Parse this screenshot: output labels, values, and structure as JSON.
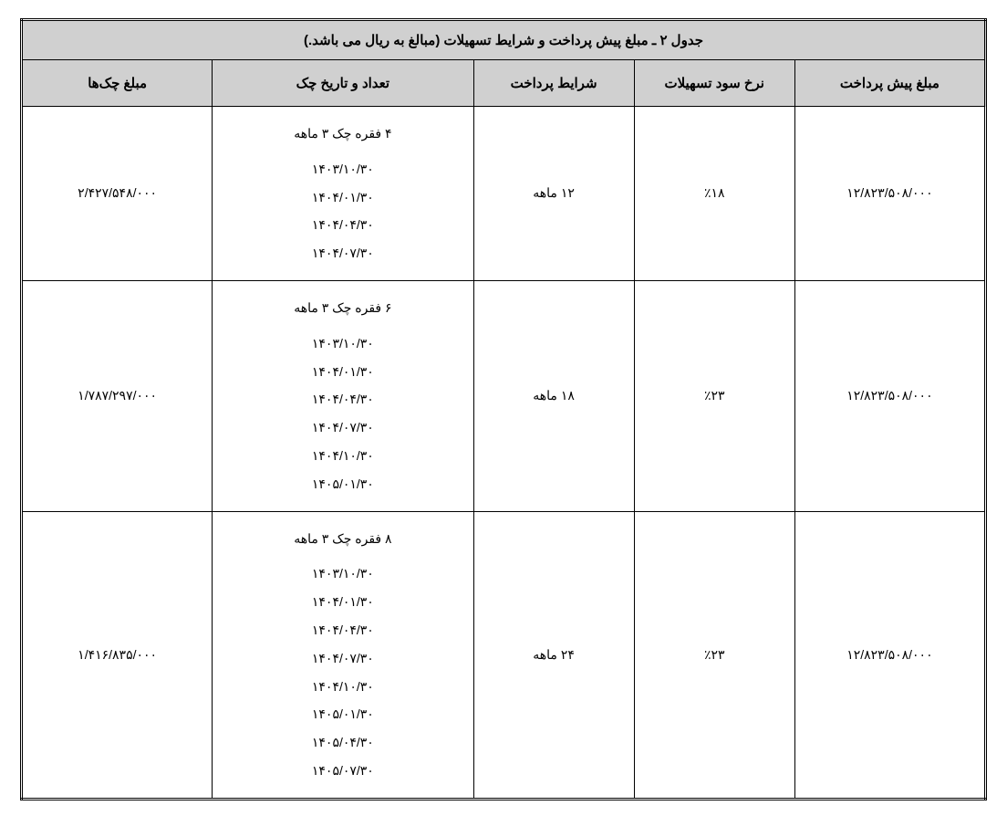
{
  "table": {
    "title": "جدول ۲ ـ مبلغ پیش پرداخت و شرایط تسهیلات (مبالغ به ریال می باشد.)",
    "columns": [
      "مبلغ پیش پرداخت",
      "نرخ سود تسهیلات",
      "شرایط پرداخت",
      "تعداد و تاریخ چک",
      "مبلغ چک‌ها"
    ],
    "rows": [
      {
        "prepayment": "۱۲/۸۲۳/۵۰۸/۰۰۰",
        "rate": "٪۱۸",
        "terms": "۱۲ ماهه",
        "check_header": "۴ فقره چک ۳ ماهه",
        "dates": [
          "۱۴۰۳/۱۰/۳۰",
          "۱۴۰۴/۰۱/۳۰",
          "۱۴۰۴/۰۴/۳۰",
          "۱۴۰۴/۰۷/۳۰"
        ],
        "check_amount": "۲/۴۲۷/۵۴۸/۰۰۰"
      },
      {
        "prepayment": "۱۲/۸۲۳/۵۰۸/۰۰۰",
        "rate": "٪۲۳",
        "terms": "۱۸ ماهه",
        "check_header": "۶ فقره چک ۳ ماهه",
        "dates": [
          "۱۴۰۳/۱۰/۳۰",
          "۱۴۰۴/۰۱/۳۰",
          "۱۴۰۴/۰۴/۳۰",
          "۱۴۰۴/۰۷/۳۰",
          "۱۴۰۴/۱۰/۳۰",
          "۱۴۰۵/۰۱/۳۰"
        ],
        "check_amount": "۱/۷۸۷/۲۹۷/۰۰۰"
      },
      {
        "prepayment": "۱۲/۸۲۳/۵۰۸/۰۰۰",
        "rate": "٪۲۳",
        "terms": "۲۴ ماهه",
        "check_header": "۸ فقره چک ۳ ماهه",
        "dates": [
          "۱۴۰۳/۱۰/۳۰",
          "۱۴۰۴/۰۱/۳۰",
          "۱۴۰۴/۰۴/۳۰",
          "۱۴۰۴/۰۷/۳۰",
          "۱۴۰۴/۱۰/۳۰",
          "۱۴۰۵/۰۱/۳۰",
          "۱۴۰۵/۰۴/۳۰",
          "۱۴۰۵/۰۷/۳۰"
        ],
        "check_amount": "۱/۴۱۶/۸۳۵/۰۰۰"
      }
    ],
    "styling": {
      "header_bg": "#d0d0d0",
      "border_color": "#000000",
      "body_bg": "#ffffff",
      "font_family": "Tahoma",
      "title_fontsize": 15,
      "cell_fontsize": 14,
      "outer_border": "double"
    }
  }
}
